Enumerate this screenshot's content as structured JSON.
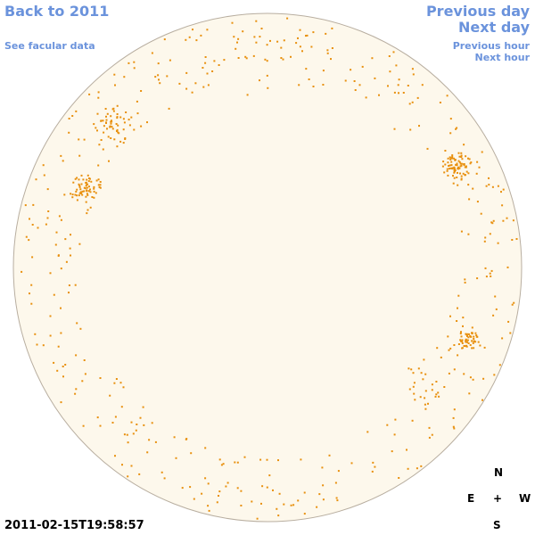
{
  "links": {
    "back": "Back to 2011",
    "facular": "See facular data",
    "previous_day": "Previous day",
    "next_day": "Next day",
    "previous_hour": "Previous hour",
    "next_hour": "Next hour"
  },
  "timestamp": "2011-02-15T19:58:57",
  "compass": {
    "north": "N",
    "east": "E",
    "center": "+",
    "west": "W",
    "south": "S"
  }
}
